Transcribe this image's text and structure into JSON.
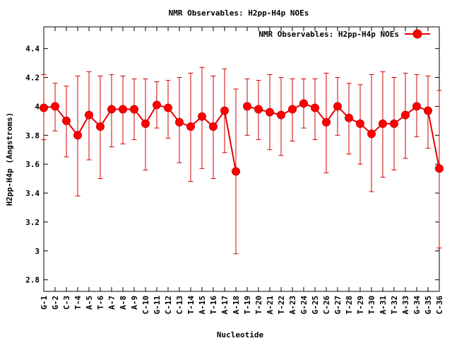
{
  "chart_data": {
    "type": "line",
    "title": "NMR Observables: H2pp-H4p NOEs",
    "xlabel": "Nucleotide",
    "ylabel": "H2pp-H4p (Angstroms)",
    "ylim": [
      2.72,
      4.55
    ],
    "yticks": [
      "2.8",
      "3",
      "3.2",
      "3.4",
      "3.6",
      "3.8",
      "4",
      "4.2",
      "4.4"
    ],
    "grid": false,
    "legend_position": "top-right",
    "colors": {
      "series": "#ff0000",
      "error": "#d40000"
    },
    "categories": [
      "G-1",
      "G-2",
      "C-3",
      "T-4",
      "A-5",
      "T-6",
      "A-7",
      "A-8",
      "A-9",
      "C-10",
      "G-11",
      "C-12",
      "C-13",
      "T-14",
      "A-15",
      "T-16",
      "A-17",
      "A-18",
      "T-19",
      "T-20",
      "A-21",
      "T-22",
      "A-23",
      "G-24",
      "G-25",
      "C-26",
      "G-27",
      "T-28",
      "T-29",
      "T-30",
      "A-31",
      "T-32",
      "A-33",
      "G-34",
      "G-35",
      "C-36"
    ],
    "series": [
      {
        "name": "NMR Observables: H2pp-H4p NOEs",
        "segments": [
          [
            0,
            17
          ],
          [
            18,
            35
          ]
        ],
        "values": [
          3.99,
          4.0,
          3.9,
          3.8,
          3.94,
          3.86,
          3.98,
          3.98,
          3.98,
          3.88,
          4.01,
          3.99,
          3.89,
          3.86,
          3.93,
          3.86,
          3.97,
          3.55,
          4.0,
          3.98,
          3.96,
          3.94,
          3.98,
          4.02,
          3.99,
          3.89,
          4.0,
          3.92,
          3.88,
          3.81,
          3.88,
          3.88,
          3.94,
          4.0,
          3.97,
          3.57
        ],
        "err_high": [
          4.22,
          4.16,
          4.14,
          4.21,
          4.24,
          4.21,
          4.22,
          4.21,
          4.19,
          4.19,
          4.17,
          4.18,
          4.2,
          4.23,
          4.27,
          4.21,
          4.26,
          4.12,
          4.19,
          4.18,
          4.22,
          4.2,
          4.19,
          4.19,
          4.19,
          4.23,
          4.2,
          4.16,
          4.15,
          4.22,
          4.24,
          4.2,
          4.23,
          4.22,
          4.21,
          4.11
        ],
        "err_low": [
          3.77,
          3.83,
          3.65,
          3.38,
          3.63,
          3.5,
          3.72,
          3.74,
          3.77,
          3.56,
          3.85,
          3.78,
          3.61,
          3.48,
          3.57,
          3.5,
          3.68,
          2.98,
          3.8,
          3.77,
          3.7,
          3.66,
          3.76,
          3.85,
          3.77,
          3.54,
          3.8,
          3.67,
          3.6,
          3.41,
          3.51,
          3.56,
          3.64,
          3.79,
          3.71,
          3.02
        ]
      }
    ]
  }
}
